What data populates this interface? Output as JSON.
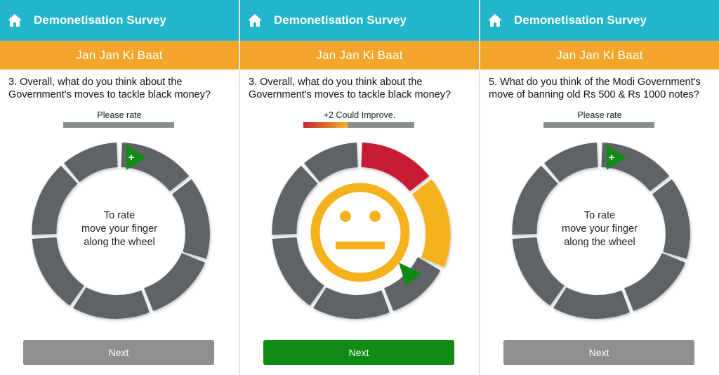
{
  "app": {
    "title": "Demonetisation Survey",
    "subtitle": "Jan Jan Ki Baat"
  },
  "screens": [
    {
      "question": "3. Overall, what do you think about the Government's moves to tackle black money?",
      "rating_label": "Please rate",
      "wheel_text": [
        "To rate",
        "move your finger",
        "along the wheel"
      ],
      "next_label": "Next",
      "next_enabled": false
    },
    {
      "question": "3. Overall, what do you think about the Government's moves to tackle black money?",
      "rating_label": "+2 Could Improve.",
      "rating_value_fraction": 0.4,
      "face": "neutral-face-icon",
      "next_label": "Next",
      "next_enabled": true
    },
    {
      "question": "5. What do you think of the Modi Government's move of banning old Rs 500 & Rs 1000 notes?",
      "rating_label": "Please rate",
      "wheel_text": [
        "To rate",
        "move your finger",
        "along the wheel"
      ],
      "next_label": "Next",
      "next_enabled": false
    }
  ],
  "colors": {
    "appbar": "#21b6c9",
    "subbar": "#f2a52a",
    "wheel_segment": "#5f6468",
    "rated_red": "#c81f35",
    "rated_yellow": "#f5b21c",
    "pointer_green": "#0f8a12",
    "next_active": "#0f8a12",
    "next_disabled": "#8f8f8f"
  }
}
